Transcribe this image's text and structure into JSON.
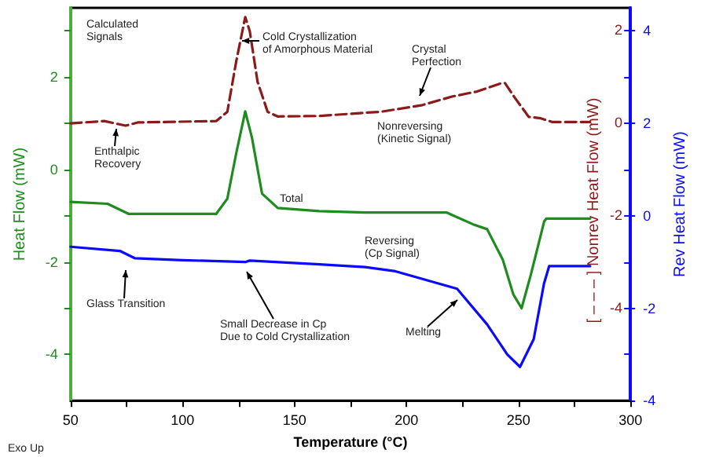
{
  "chart_data": {
    "type": "line",
    "xlabel": "Temperature (°C)",
    "ylabel": "Heat Flow (mW)",
    "y2label": "[ – – – ] Nonrev Heat Flow (mW)",
    "y3label": "Rev Heat Flow (mW)",
    "xlim": [
      50,
      300
    ],
    "xticks": [
      50,
      {
        "value": 75,
        "label": null
      },
      100,
      {
        "value": 125,
        "label": null
      },
      150,
      {
        "value": 175,
        "label": null
      },
      200,
      {
        "value": 225,
        "label": null
      },
      250,
      {
        "value": 275,
        "label": null
      },
      300
    ],
    "ylim": [
      -5,
      3.5
    ],
    "yticks": [
      -4,
      {
        "value": -3,
        "label": null
      },
      -2,
      {
        "value": -1,
        "label": null
      },
      0,
      {
        "value": 1,
        "label": null
      },
      2,
      {
        "value": 3,
        "label": null
      }
    ],
    "y2lim": [
      -6,
      2.5
    ],
    "y2ticks": [
      {
        "value": -5,
        "label": null
      },
      -4,
      {
        "value": -3,
        "label": null
      },
      -2,
      {
        "value": -1,
        "label": null
      },
      0,
      {
        "value": 1,
        "label": null
      },
      2
    ],
    "y3lim": [
      -4,
      4.5
    ],
    "y3ticks": [
      -4,
      -2,
      0,
      2,
      4
    ],
    "grid": false,
    "marker": "none",
    "series": [
      {
        "color": "#8b1a1a",
        "axis": "y2",
        "line_style": "dashed",
        "x": [
          50,
          65,
          74.6,
          80,
          115,
          120,
          124,
          128,
          130,
          133.5,
          138,
          142.5,
          161,
          181.5,
          188.4,
          206.6,
          220.3,
          231.5,
          241.8,
          244,
          248.6,
          254.6,
          260,
          265,
          282
        ],
        "values": [
          0,
          0.05,
          -0.05,
          0.02,
          0.05,
          0.25,
          1.35,
          2.3,
          2.0,
          0.9,
          0.25,
          0.15,
          0.16,
          0.23,
          0.25,
          0.39,
          0.58,
          0.69,
          0.86,
          0.87,
          0.54,
          0.14,
          0.11,
          0.03,
          0.03
        ]
      },
      {
        "color": "#1e8c1e",
        "line_style": "solid",
        "x": [
          50,
          66.5,
          76,
          115,
          120,
          124,
          128,
          131,
          135.5,
          142.5,
          161,
          181.5,
          218,
          229.5,
          236,
          243,
          247.7,
          251.4,
          255.5,
          261.5,
          262.5,
          282
        ],
        "values": [
          -0.7,
          -0.74,
          -0.96,
          -0.96,
          -0.63,
          0.36,
          1.26,
          0.69,
          -0.52,
          -0.83,
          -0.9,
          -0.93,
          -0.93,
          -1.18,
          -1.29,
          -1.95,
          -2.7,
          -3.0,
          -2.28,
          -1.12,
          -1.06,
          -1.06
        ]
      },
      {
        "color": "#0a0aff",
        "axis": "y3",
        "line_style": "solid",
        "x": [
          50,
          72,
          78.8,
          100,
          128,
          130,
          161,
          181.5,
          195,
          222.6,
          236,
          245,
          250.7,
          256.8,
          261.4,
          263.7,
          282
        ],
        "values": [
          -0.67,
          -0.76,
          -0.92,
          -0.96,
          -1.0,
          -0.97,
          -1.05,
          -1.11,
          -1.2,
          -1.58,
          -2.35,
          -3.0,
          -3.27,
          -2.67,
          -1.47,
          -1.09,
          -1.09
        ]
      }
    ],
    "annotations": [
      "Calculated\nSignals",
      "Cold Crystallization\nof Amorphous Material",
      "Enthalpic\nRecovery",
      "Crystal\nPerfection",
      "Nonreversing\n(Kinetic Signal)",
      "Total",
      "Reversing\n(Cp Signal)",
      "Glass Transition",
      "Small Decrease in Cp\nDue to Cold Crystallization",
      "Melting",
      "Exo Up"
    ]
  }
}
